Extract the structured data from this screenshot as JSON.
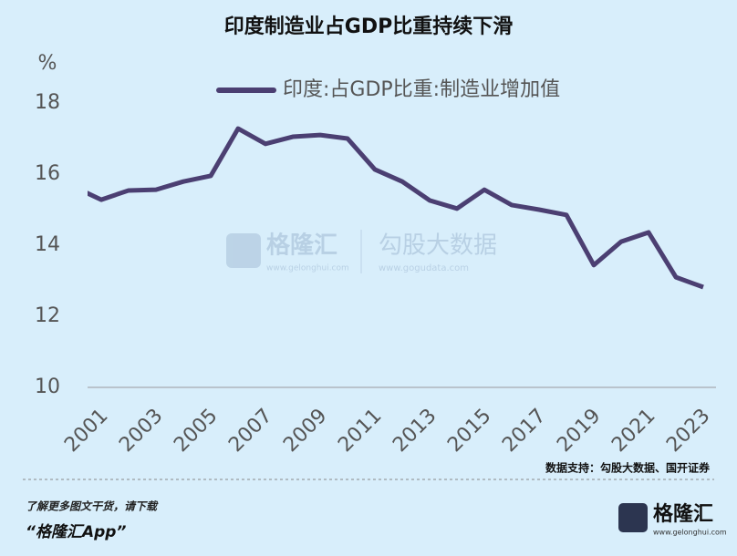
{
  "chart_data": {
    "type": "line",
    "title": "印度制造业占GDP比重持续下滑",
    "y_label": "%",
    "categories": [
      null,
      "2001",
      null,
      "2003",
      null,
      "2005",
      null,
      "2007",
      null,
      "2009",
      null,
      "2011",
      null,
      "2013",
      null,
      "2015",
      null,
      "2017",
      null,
      "2019",
      null,
      "2021",
      null,
      "2023"
    ],
    "series": [
      {
        "name": "印度:占GDP比重:制造业增加值",
        "color": "#4b3f72",
        "values": [
          15.64,
          15.28,
          15.54,
          15.56,
          15.79,
          15.95,
          17.28,
          16.85,
          17.05,
          17.1,
          17.0,
          16.13,
          15.79,
          15.26,
          15.03,
          15.56,
          15.13,
          15.0,
          14.85,
          13.44,
          14.1,
          14.36,
          13.1,
          12.82
        ]
      }
    ],
    "ylim": [
      10,
      18.3
    ],
    "yticks": [
      10,
      12,
      14,
      16,
      18
    ],
    "legend": "top"
  },
  "source": "数据支持：勾股大数据、国开证券",
  "footer": {
    "line1": "了解更多图文干货，请下载",
    "line2": "“格隆汇App”",
    "brand": "格隆汇",
    "brand_url": "www.gelonghui.com"
  },
  "watermark": {
    "left": "格隆汇",
    "left_url": "www.gelonghui.com",
    "right": "勾股大数据",
    "right_url": "www.gogudata.com"
  }
}
